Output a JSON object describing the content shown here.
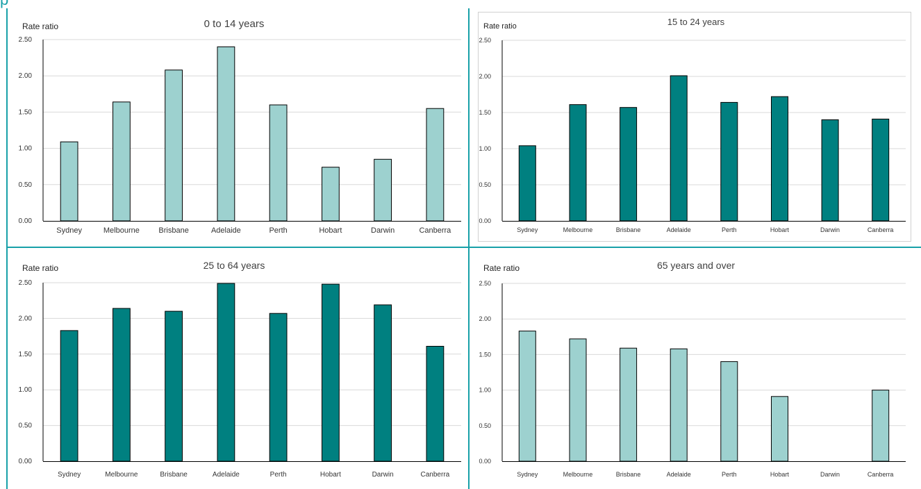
{
  "page": {
    "header_text": "p",
    "colors": {
      "accent": "#17a0a8",
      "light_bar": "#9dd1cf",
      "dark_bar": "#008080"
    }
  },
  "chart_data": [
    {
      "type": "bar",
      "title": "0 to 14 years",
      "ylabel": "Rate ratio",
      "xlabel": "",
      "categories": [
        "Sydney",
        "Melbourne",
        "Brisbane",
        "Adelaide",
        "Perth",
        "Hobart",
        "Darwin",
        "Canberra"
      ],
      "values": [
        1.09,
        1.64,
        2.08,
        2.4,
        1.6,
        0.74,
        0.85,
        1.55
      ],
      "ylim": [
        0,
        2.5
      ],
      "yticks": [
        "0.00",
        "0.50",
        "1.00",
        "1.50",
        "2.00",
        "2.50"
      ],
      "bar_color": "#9dd1cf",
      "grid": true,
      "legend": "none"
    },
    {
      "type": "bar",
      "title": "15 to 24 years",
      "ylabel": "Rate ratio",
      "xlabel": "",
      "categories": [
        "Sydney",
        "Melbourne",
        "Brisbane",
        "Adelaide",
        "Perth",
        "Hobart",
        "Darwin",
        "Canberra"
      ],
      "values": [
        1.04,
        1.61,
        1.57,
        2.01,
        1.64,
        1.72,
        1.4,
        1.41
      ],
      "ylim": [
        0,
        2.5
      ],
      "yticks": [
        "0.00",
        "0.50",
        "1.00",
        "1.50",
        "2.00",
        "2.50"
      ],
      "bar_color": "#008080",
      "grid": true,
      "legend": "none"
    },
    {
      "type": "bar",
      "title": "25 to 64 years",
      "ylabel": "Rate ratio",
      "xlabel": "",
      "categories": [
        "Sydney",
        "Melbourne",
        "Brisbane",
        "Adelaide",
        "Perth",
        "Hobart",
        "Darwin",
        "Canberra"
      ],
      "values": [
        1.83,
        2.14,
        2.1,
        2.49,
        2.07,
        2.48,
        2.19,
        1.61
      ],
      "ylim": [
        0,
        2.5
      ],
      "yticks": [
        "0.00",
        "0.50",
        "1.00",
        "1.50",
        "2.00",
        "2.50"
      ],
      "bar_color": "#008080",
      "grid": true,
      "legend": "none"
    },
    {
      "type": "bar",
      "title": "65 years and over",
      "ylabel": "Rate ratio",
      "xlabel": "",
      "categories": [
        "Sydney",
        "Melbourne",
        "Brisbane",
        "Adelaide",
        "Perth",
        "Hobart",
        "Darwin",
        "Canberra"
      ],
      "values": [
        1.83,
        1.72,
        1.59,
        1.58,
        1.4,
        0.91,
        null,
        1.0
      ],
      "ylim": [
        0,
        2.5
      ],
      "yticks": [
        "0.00",
        "0.50",
        "1.00",
        "1.50",
        "2.00",
        "2.50"
      ],
      "bar_color": "#9dd1cf",
      "grid": true,
      "legend": "none"
    }
  ]
}
